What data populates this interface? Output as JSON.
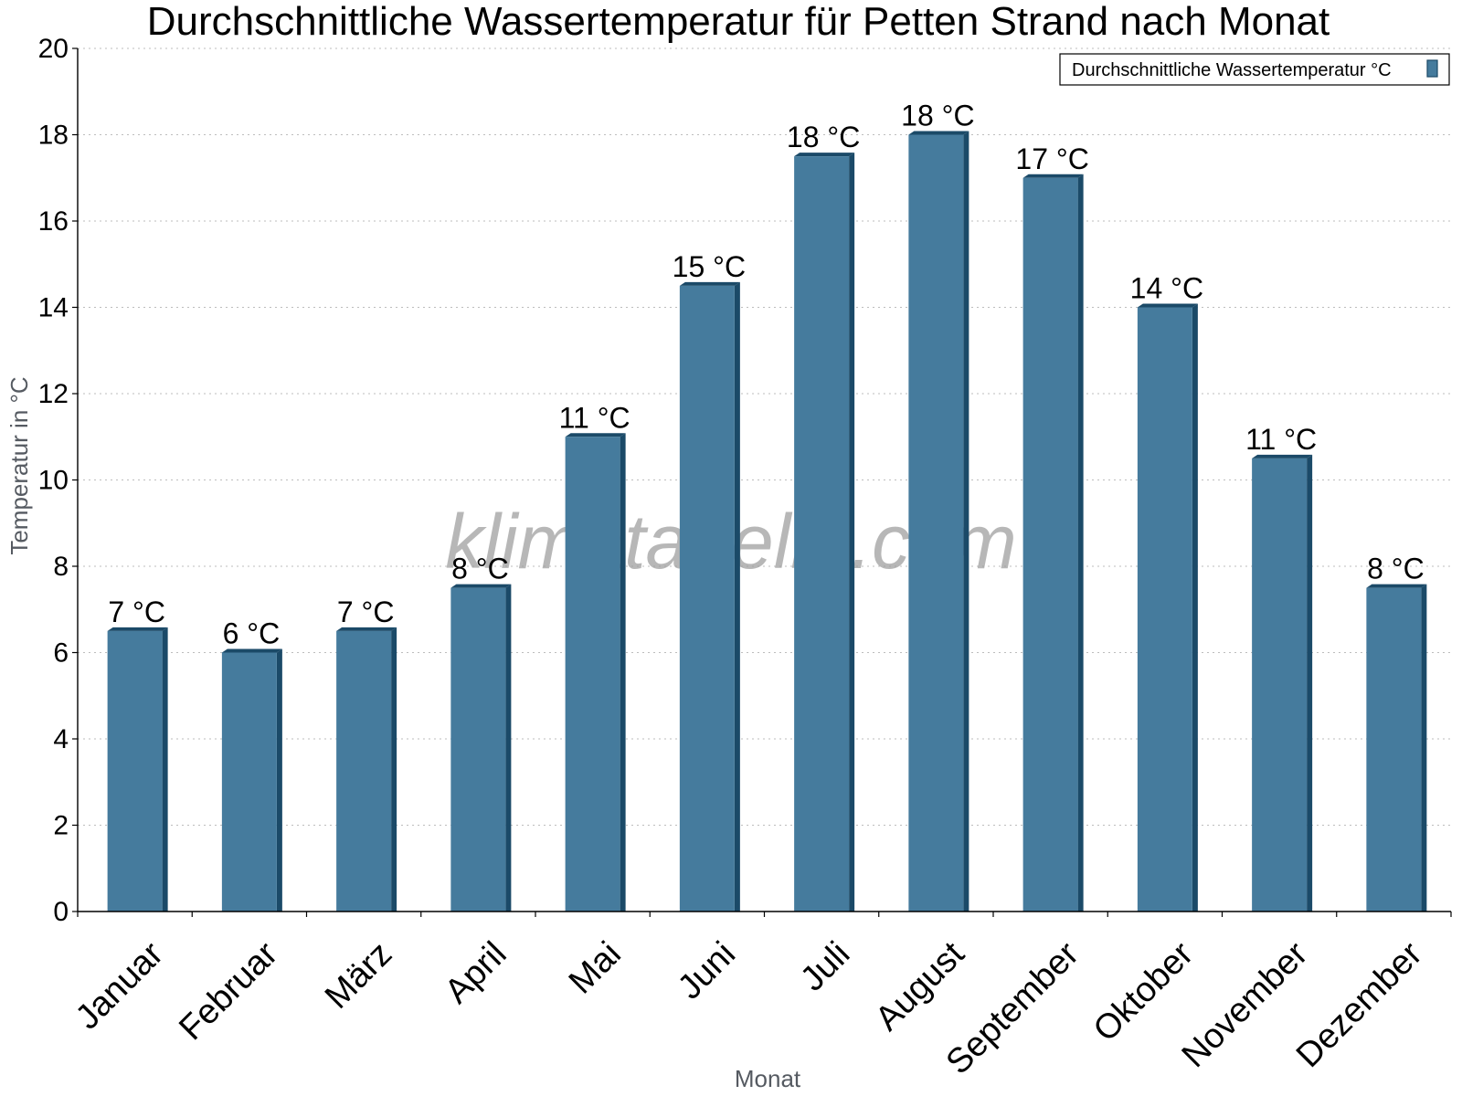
{
  "chart_data": {
    "type": "bar",
    "title": "Durchschnittliche Wassertemperatur für Petten Strand nach Monat",
    "xlabel": "Monat",
    "ylabel": "Temperatur in °C",
    "ylim": [
      0,
      20
    ],
    "yticks": [
      0,
      2,
      4,
      6,
      8,
      10,
      12,
      14,
      16,
      18,
      20
    ],
    "grid": true,
    "legend_position": "top-right",
    "categories": [
      "Januar",
      "Februar",
      "März",
      "April",
      "Mai",
      "Juni",
      "Juli",
      "August",
      "September",
      "Oktober",
      "November",
      "Dezember"
    ],
    "series": [
      {
        "name": "Durchschnittliche Wassertemperatur °C",
        "color": "#457b9d",
        "values": [
          6.5,
          6.0,
          6.5,
          7.5,
          11.0,
          14.5,
          17.5,
          18.0,
          17.0,
          14.0,
          10.5,
          7.5
        ],
        "labels": [
          "7 °C",
          "6 °C",
          "7 °C",
          "8 °C",
          "11 °C",
          "15 °C",
          "18 °C",
          "18 °C",
          "17 °C",
          "14 °C",
          "11 °C",
          "8 °C"
        ]
      }
    ],
    "watermark": "klimatabelle.com"
  }
}
